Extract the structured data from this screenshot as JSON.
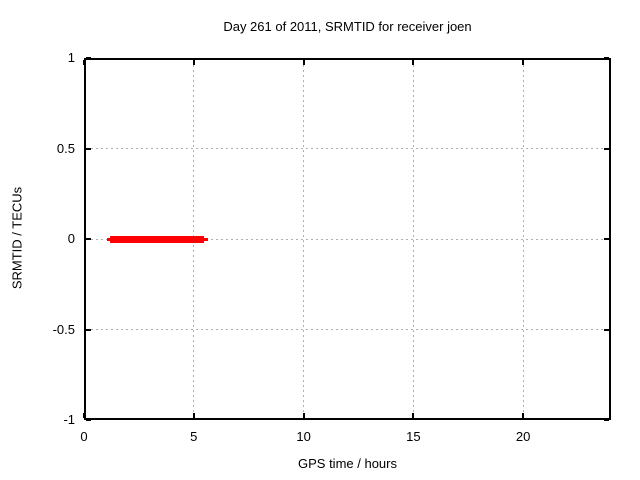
{
  "page": {
    "background": "#ffffff"
  },
  "chart_data": {
    "type": "line",
    "title": "Day 261 of 2011, SRMTID for receiver joen",
    "xlabel": "GPS time / hours",
    "ylabel": "SRMTID / TECUs",
    "xlim": [
      0,
      24
    ],
    "ylim": [
      -1,
      1
    ],
    "xticks": [
      0,
      5,
      10,
      15,
      20
    ],
    "xtick_labels": [
      "0",
      "5",
      "10",
      "15",
      "20"
    ],
    "yticks": [
      -1,
      -0.5,
      0,
      0.5,
      1
    ],
    "ytick_labels": [
      "-1",
      "-0.5",
      "0",
      "0.5",
      "1"
    ],
    "grid": true,
    "grid_style": "dashed",
    "legend_position": "none",
    "colors": {
      "background": "#ffffff",
      "axis": "#000000",
      "text": "#000000",
      "grid": "#b0b0b0",
      "series": "#ff0000"
    },
    "series": [
      {
        "name": "SRMTID",
        "color": "#ff0000",
        "description": "Thick horizontal red segment at SRMTID = 0 TECUs spanning approx. 1.2 to 5.5 GPS hours (thin line lead/tail approx. 1.05 to 5.65)",
        "segments": [
          {
            "x1": 1.05,
            "x2": 5.65,
            "y": 0,
            "style": "thin"
          },
          {
            "x1": 1.2,
            "x2": 5.45,
            "y": 0,
            "style": "thick"
          }
        ]
      }
    ]
  }
}
